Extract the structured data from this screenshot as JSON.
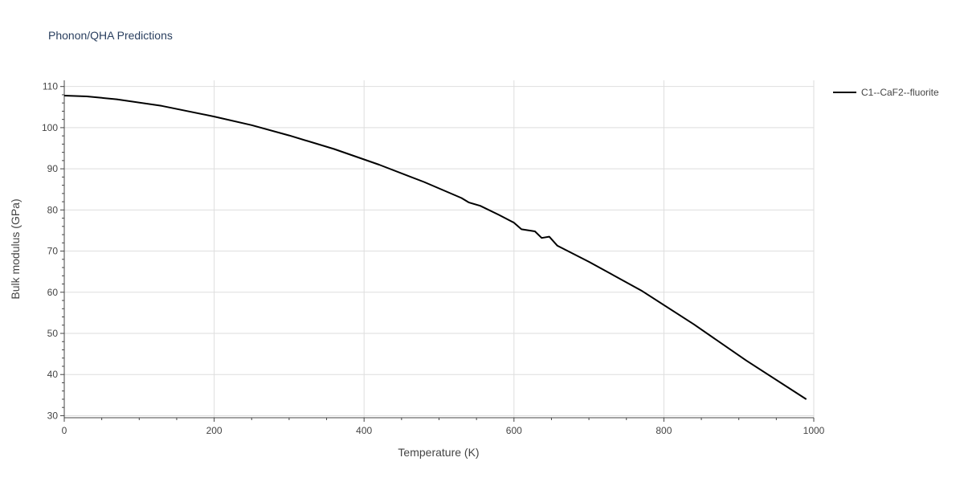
{
  "chart_data": {
    "type": "line",
    "title": "Phonon/QHA Predictions",
    "xlabel": "Temperature (K)",
    "ylabel": "Bulk modulus (GPa)",
    "xlim": [
      0,
      1000
    ],
    "ylim": [
      29.5,
      111.5
    ],
    "x_ticks": [
      0,
      200,
      400,
      600,
      800,
      1000
    ],
    "y_ticks": [
      30,
      40,
      50,
      60,
      70,
      80,
      90,
      100,
      110
    ],
    "grid": true,
    "legend_position": "top-right",
    "series": [
      {
        "name": "C1--CaF2--fluorite",
        "color": "#000000",
        "x": [
          0,
          30,
          70,
          130,
          200,
          250,
          300,
          360,
          420,
          480,
          530,
          540,
          555,
          580,
          600,
          610,
          628,
          637,
          647,
          658,
          700,
          770,
          840,
          910,
          990
        ],
        "y": [
          107.8,
          107.6,
          106.9,
          105.3,
          102.7,
          100.6,
          98.1,
          94.8,
          91.0,
          86.8,
          82.9,
          81.8,
          81.0,
          78.8,
          76.9,
          75.3,
          74.8,
          73.2,
          73.5,
          71.3,
          67.4,
          60.4,
          52.2,
          43.4,
          34.0
        ]
      }
    ]
  }
}
